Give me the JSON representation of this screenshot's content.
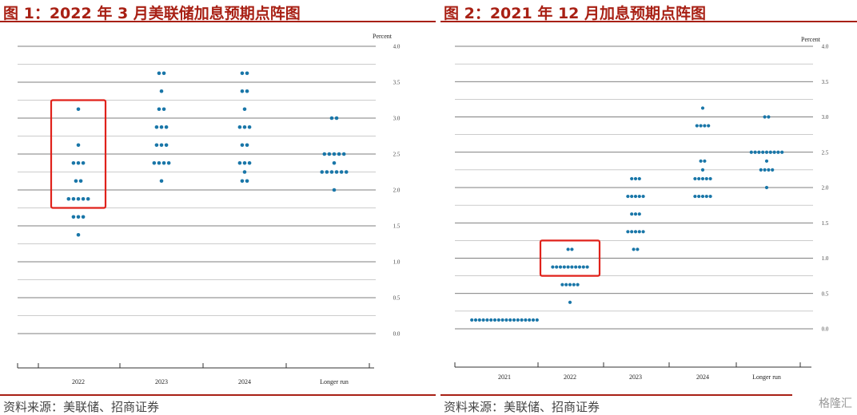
{
  "panels": [
    {
      "title": "图 1：2022 年 3 月美联储加息预期点阵图",
      "source": "资料来源：美联储、招商证券"
    },
    {
      "title": "图 2：2021 年 12 月加息预期点阵图",
      "source": "资料来源：美联储、招商证券"
    }
  ],
  "chart_data": [
    {
      "type": "scatter",
      "ylabel": "Percent",
      "ylim": [
        0,
        4.0
      ],
      "yticks": [
        "0.0",
        "0.5",
        "1.0",
        "1.5",
        "2.0",
        "2.5",
        "3.0",
        "3.5",
        "4.0"
      ],
      "categories": [
        "2022",
        "2023",
        "2024",
        "Longer run"
      ],
      "dots": [
        {
          "category": "2022",
          "values": [
            {
              "y": 3.125,
              "n": 1
            },
            {
              "y": 2.625,
              "n": 1
            },
            {
              "y": 2.375,
              "n": 3
            },
            {
              "y": 2.125,
              "n": 2
            },
            {
              "y": 1.875,
              "n": 5
            },
            {
              "y": 1.625,
              "n": 3
            },
            {
              "y": 1.375,
              "n": 1
            }
          ]
        },
        {
          "category": "2023",
          "values": [
            {
              "y": 3.625,
              "n": 2
            },
            {
              "y": 3.375,
              "n": 1
            },
            {
              "y": 3.125,
              "n": 2
            },
            {
              "y": 2.875,
              "n": 3
            },
            {
              "y": 2.625,
              "n": 3
            },
            {
              "y": 2.375,
              "n": 4
            },
            {
              "y": 2.125,
              "n": 1
            }
          ]
        },
        {
          "category": "2024",
          "values": [
            {
              "y": 3.625,
              "n": 2
            },
            {
              "y": 3.375,
              "n": 2
            },
            {
              "y": 3.125,
              "n": 1
            },
            {
              "y": 2.875,
              "n": 3
            },
            {
              "y": 2.625,
              "n": 2
            },
            {
              "y": 2.375,
              "n": 3
            },
            {
              "y": 2.25,
              "n": 1
            },
            {
              "y": 2.125,
              "n": 2
            }
          ]
        },
        {
          "category": "Longer run",
          "values": [
            {
              "y": 3.0,
              "n": 2
            },
            {
              "y": 2.5,
              "n": 5
            },
            {
              "y": 2.375,
              "n": 1
            },
            {
              "y": 2.25,
              "n": 6
            },
            {
              "y": 2.0,
              "n": 1
            }
          ]
        }
      ],
      "highlight": {
        "category": "2022",
        "ylim": [
          1.75,
          3.25
        ],
        "color": "#e0221b"
      },
      "dot_color": "#1976a8"
    },
    {
      "type": "scatter",
      "ylabel": "Percent",
      "ylim": [
        0,
        4.0
      ],
      "yticks": [
        "0.0",
        "0.5",
        "1.0",
        "1.5",
        "2.0",
        "2.5",
        "3.0",
        "3.5",
        "4.0"
      ],
      "categories": [
        "2021",
        "2022",
        "2023",
        "2024",
        "Longer run"
      ],
      "dots": [
        {
          "category": "2021",
          "values": [
            {
              "y": 0.125,
              "n": 18
            }
          ]
        },
        {
          "category": "2022",
          "values": [
            {
              "y": 1.125,
              "n": 2
            },
            {
              "y": 0.875,
              "n": 10
            },
            {
              "y": 0.625,
              "n": 5
            },
            {
              "y": 0.375,
              "n": 1
            }
          ]
        },
        {
          "category": "2023",
          "values": [
            {
              "y": 2.125,
              "n": 3
            },
            {
              "y": 1.875,
              "n": 5
            },
            {
              "y": 1.625,
              "n": 3
            },
            {
              "y": 1.375,
              "n": 5
            },
            {
              "y": 1.125,
              "n": 2
            }
          ]
        },
        {
          "category": "2024",
          "values": [
            {
              "y": 3.125,
              "n": 1
            },
            {
              "y": 2.875,
              "n": 4
            },
            {
              "y": 2.375,
              "n": 2
            },
            {
              "y": 2.25,
              "n": 1
            },
            {
              "y": 2.125,
              "n": 5
            },
            {
              "y": 1.875,
              "n": 5
            }
          ]
        },
        {
          "category": "Longer run",
          "values": [
            {
              "y": 3.0,
              "n": 2
            },
            {
              "y": 2.5,
              "n": 9
            },
            {
              "y": 2.375,
              "n": 1
            },
            {
              "y": 2.25,
              "n": 4
            },
            {
              "y": 2.0,
              "n": 1
            }
          ]
        }
      ],
      "highlight": {
        "category": "2022",
        "ylim": [
          0.75,
          1.25
        ],
        "color": "#e0221b"
      },
      "dot_color": "#1976a8"
    }
  ],
  "watermark": "格隆汇"
}
